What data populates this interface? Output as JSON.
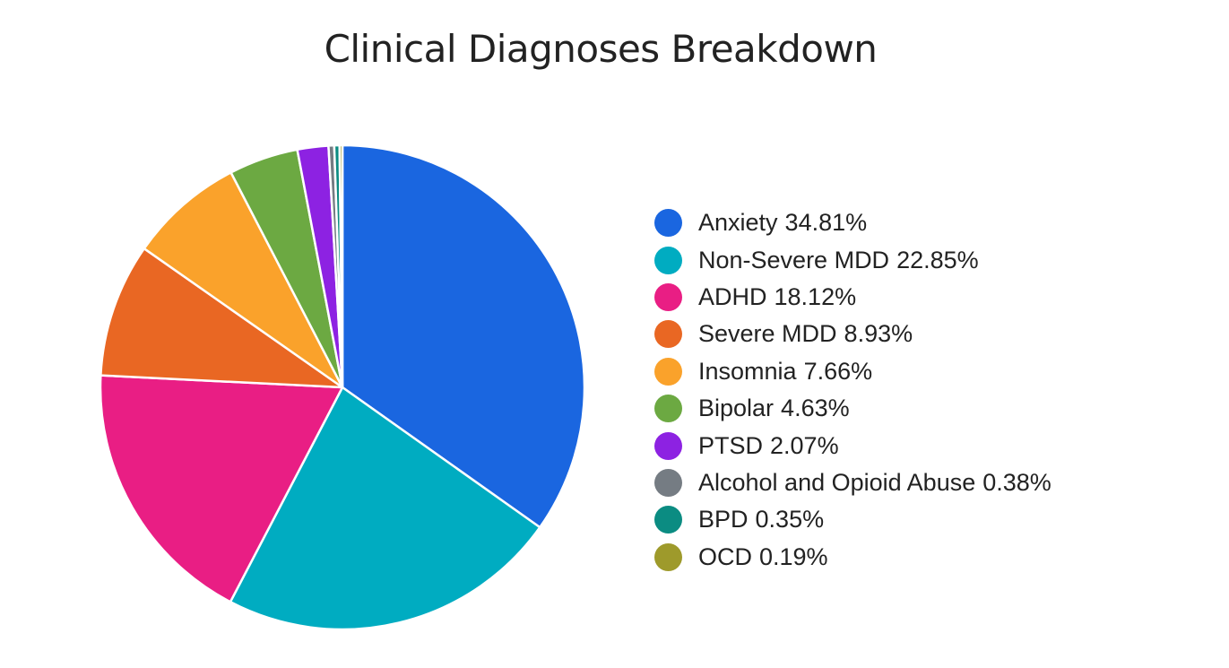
{
  "chart_data": {
    "type": "pie",
    "title": "Clinical Diagnoses Breakdown",
    "legend_position": "right",
    "slices": [
      {
        "label": "Anxiety",
        "value": 34.81,
        "display": "34.81%",
        "color": "#1a66e0"
      },
      {
        "label": "Non-Severe MDD",
        "value": 22.85,
        "display": "22.85%",
        "color": "#00acc1"
      },
      {
        "label": "ADHD",
        "value": 18.12,
        "display": "18.12%",
        "color": "#e91e84"
      },
      {
        "label": "Severe MDD",
        "value": 8.93,
        "display": "8.93%",
        "color": "#e96723"
      },
      {
        "label": "Insomnia",
        "value": 7.66,
        "display": "7.66%",
        "color": "#faa22b"
      },
      {
        "label": "Bipolar",
        "value": 4.63,
        "display": "4.63%",
        "color": "#6ca942"
      },
      {
        "label": "PTSD",
        "value": 2.07,
        "display": "2.07%",
        "color": "#8d22e2"
      },
      {
        "label": "Alcohol and Opioid Abuse",
        "value": 0.38,
        "display": "0.38%",
        "color": "#757c83"
      },
      {
        "label": "BPD",
        "value": 0.35,
        "display": "0.35%",
        "color": "#0b8c82"
      },
      {
        "label": "OCD",
        "value": 0.19,
        "display": "0.19%",
        "color": "#9e9a2b"
      }
    ]
  }
}
